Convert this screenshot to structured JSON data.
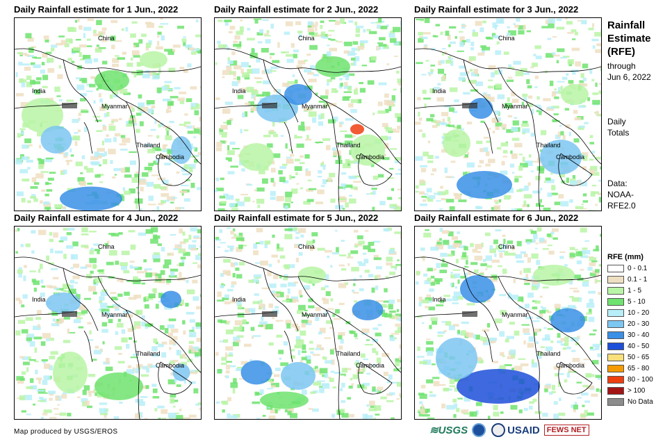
{
  "panels": [
    {
      "title": "Daily Rainfall estimate for 1 Jun., 2022"
    },
    {
      "title": "Daily Rainfall estimate for 2 Jun., 2022"
    },
    {
      "title": "Daily Rainfall estimate for 3 Jun., 2022"
    },
    {
      "title": "Daily Rainfall estimate for 4 Jun., 2022"
    },
    {
      "title": "Daily Rainfall estimate for 5 Jun., 2022"
    },
    {
      "title": "Daily Rainfall estimate for 6 Jun., 2022"
    }
  ],
  "places": {
    "china": "China",
    "india": "India",
    "myanmar": "Myanmar",
    "thailand": "Thailand",
    "cambodia": "Cambodia"
  },
  "sidebar": {
    "title_line1": "Rainfall",
    "title_line2": "Estimate",
    "title_line3": "(RFE)",
    "through_line1": "through",
    "through_line2": "Jun 6, 2022",
    "totals_line1": "Daily",
    "totals_line2": "Totals",
    "data_line1": "Data:",
    "data_line2": "NOAA-",
    "data_line3": "RFE2.0"
  },
  "legend": {
    "title": "RFE (mm)",
    "items": [
      {
        "label": "0 - 0.1",
        "color": "#ffffff"
      },
      {
        "label": "0.1 - 1",
        "color": "#eedfc2"
      },
      {
        "label": "1 - 5",
        "color": "#b9f5a6"
      },
      {
        "label": "5 - 10",
        "color": "#6fe36f"
      },
      {
        "label": "10 - 20",
        "color": "#b8eef8"
      },
      {
        "label": "20 - 30",
        "color": "#7cc6f2"
      },
      {
        "label": "30 - 40",
        "color": "#3a8fe6"
      },
      {
        "label": "40 - 50",
        "color": "#1d4fd8"
      },
      {
        "label": "50 - 65",
        "color": "#f9e07a"
      },
      {
        "label": "65 - 80",
        "color": "#f59a00"
      },
      {
        "label": "80 - 100",
        "color": "#ee3f10"
      },
      {
        "label": "> 100",
        "color": "#a31515"
      },
      {
        "label": "No Data",
        "color": "#8c8c8c"
      }
    ]
  },
  "credit": "Map produced by USGS/EROS",
  "logos": {
    "usgs": "≋USGS",
    "usaid": "USAID",
    "fews": "FEWS NET"
  }
}
